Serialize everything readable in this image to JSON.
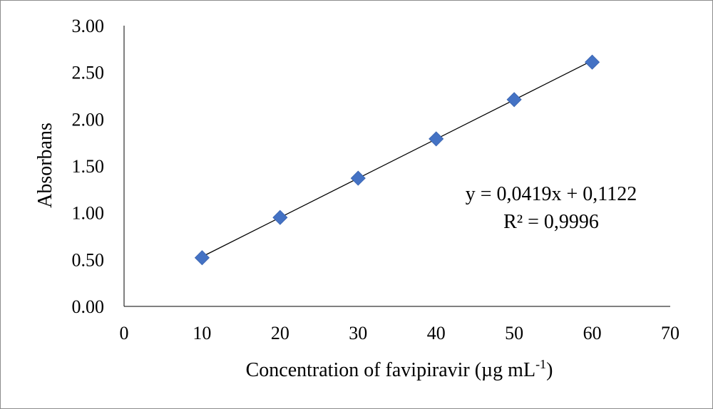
{
  "chart_data": {
    "type": "scatter",
    "title": "",
    "xlabel": "Concentration of favipiravir (µg mL",
    "xlabel_superscript": "-1",
    "xlabel_suffix": ")",
    "ylabel": "Absorbans",
    "xlim": [
      0,
      70
    ],
    "ylim": [
      0,
      3
    ],
    "x_ticks": [
      0,
      10,
      20,
      30,
      40,
      50,
      60,
      70
    ],
    "x_tick_labels": [
      "0",
      "10",
      "20",
      "30",
      "40",
      "50",
      "60",
      "70"
    ],
    "y_ticks": [
      0,
      0.5,
      1,
      1.5,
      2,
      2.5,
      3
    ],
    "y_tick_labels": [
      "0.00",
      "0.50",
      "1.00",
      "1.50",
      "2.00",
      "2.50",
      "3.00"
    ],
    "grid": false,
    "series": [
      {
        "marker": "diamond",
        "color": "#4472C4",
        "points": [
          {
            "x": 10,
            "y": 0.52
          },
          {
            "x": 20,
            "y": 0.95
          },
          {
            "x": 30,
            "y": 1.37
          },
          {
            "x": 40,
            "y": 1.79
          },
          {
            "x": 50,
            "y": 2.21
          },
          {
            "x": 60,
            "y": 2.61
          }
        ]
      }
    ],
    "trendline": {
      "type": "linear",
      "slope": 0.0419,
      "intercept": 0.1122,
      "x_range": [
        10,
        60
      ],
      "color": "#000000",
      "equation": "y = 0,0419x + 0,1122",
      "r_squared": "R² = 0,9996"
    }
  }
}
